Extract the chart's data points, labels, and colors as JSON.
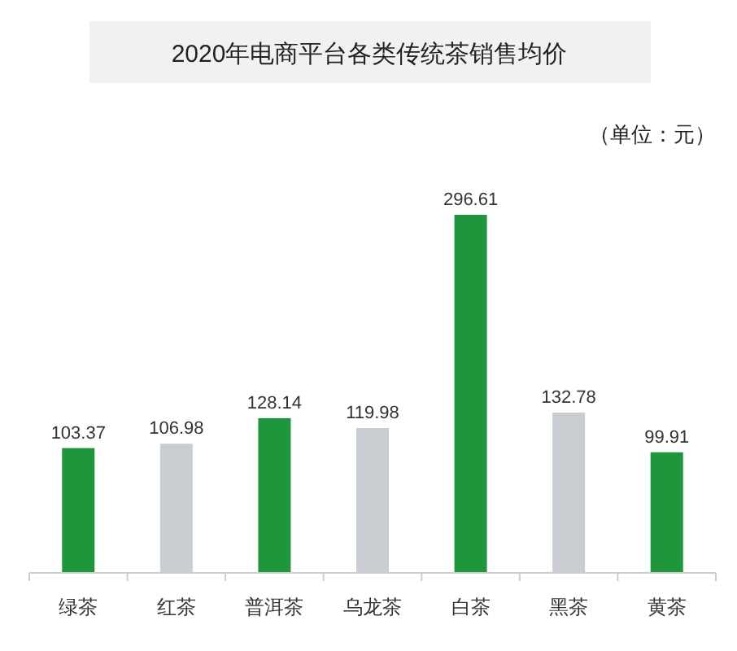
{
  "chart_data": {
    "type": "bar",
    "title": "2020年电商平台各类传统茶销售均价",
    "annotations": [
      "（单位：元）"
    ],
    "categories": [
      "绿茶",
      "红茶",
      "普洱茶",
      "乌龙茶",
      "白茶",
      "黑茶",
      "黄茶"
    ],
    "values": [
      103.37,
      106.98,
      128.14,
      119.98,
      296.61,
      132.78,
      99.91
    ],
    "colors": [
      "#1e963c",
      "#c9cdd1",
      "#1e963c",
      "#c9cdd1",
      "#1e963c",
      "#c9cdd1",
      "#1e963c"
    ],
    "data_labels": true
  }
}
